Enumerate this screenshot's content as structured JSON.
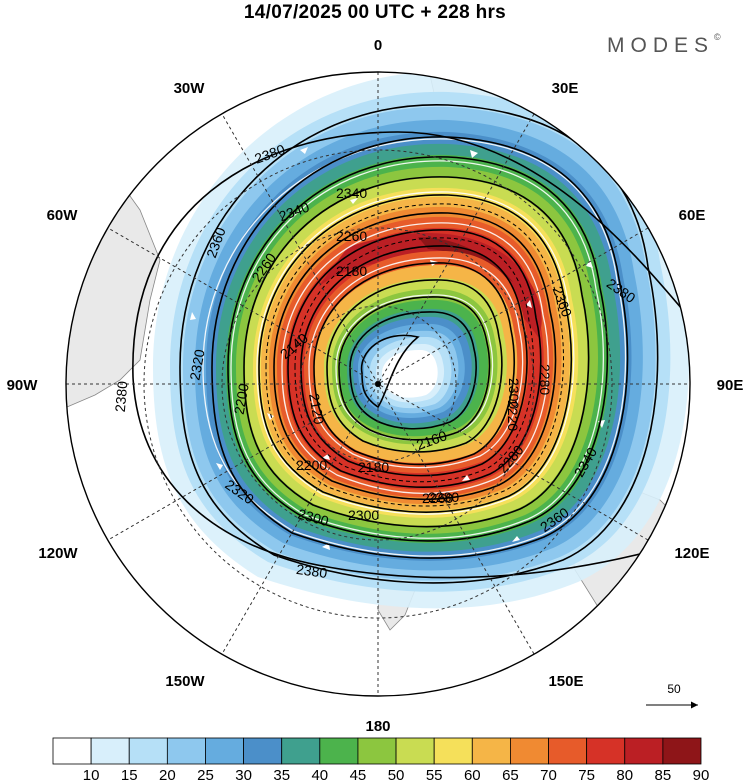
{
  "title": "14/07/2025  00 UTC  + 228 hrs",
  "logo": "MODES",
  "logo_mark": "©",
  "meridian_labels": {
    "deg0": "0",
    "deg30e": "30E",
    "deg60e": "60E",
    "deg90e": "90E",
    "deg120e": "120E",
    "deg150e": "150E",
    "deg180": "180",
    "deg150w": "150W",
    "deg120w": "120W",
    "deg90w": "90W",
    "deg60w": "60W",
    "deg30w": "30W"
  },
  "contour_labels": {
    "c1": "2380",
    "c2": "2340",
    "c3": "2360",
    "c4": "2260",
    "c5": "2180",
    "c6": "2260",
    "c7": "2340",
    "c8": "2320",
    "c9": "2140",
    "c10": "2200",
    "c11": "2380",
    "c12": "2380",
    "c13": "2360",
    "c14": "2280",
    "c15": "2220",
    "c16": "2300",
    "c17": "2160",
    "c18": "2280",
    "c19": "2200",
    "c20": "2180",
    "c21": "2340",
    "c22": "2360",
    "c23": "2260",
    "c24": "2320",
    "c25": "2300",
    "c26": "2280",
    "c27": "2120",
    "c28": "2380",
    "c29": "2300"
  },
  "reference_vector": "50",
  "colorbar": {
    "ticks": [
      "10",
      "15",
      "20",
      "25",
      "30",
      "35",
      "40",
      "45",
      "50",
      "55",
      "60",
      "65",
      "70",
      "75",
      "80",
      "85",
      "90"
    ],
    "colors": [
      "#ffffff",
      "#d8effb",
      "#b6e0f7",
      "#8ec8ee",
      "#65acdf",
      "#4b8fc9",
      "#3fa08e",
      "#4cb34c",
      "#8cc63f",
      "#c9dc52",
      "#f5e05a",
      "#f5b547",
      "#f08a32",
      "#e75b2a",
      "#d63227",
      "#bb1f24",
      "#8e1518"
    ]
  }
}
